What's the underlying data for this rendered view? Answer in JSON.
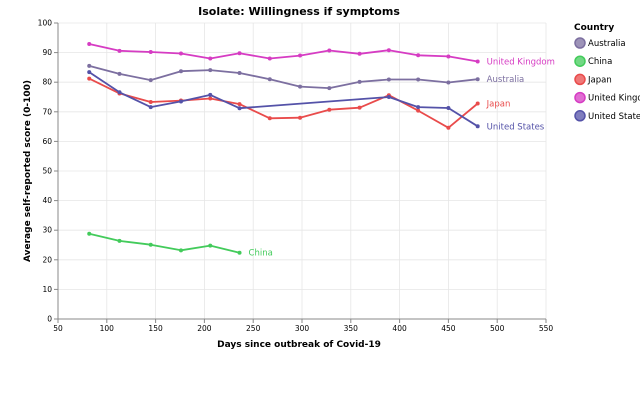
{
  "chart_data": {
    "type": "line",
    "title": "Isolate: Willingness if symptoms",
    "xlabel": "Days since outbreak of Covid-19",
    "ylabel": "Average self-reported score (0-100)",
    "xlim": [
      50,
      550
    ],
    "ylim": [
      0,
      100
    ],
    "x_ticks": [
      50,
      100,
      150,
      200,
      250,
      300,
      350,
      400,
      450,
      500,
      550
    ],
    "y_ticks": [
      0,
      10,
      20,
      30,
      40,
      50,
      60,
      70,
      80,
      90,
      100
    ],
    "grid": true,
    "legend": {
      "title": "Country",
      "placement": "right",
      "entries": [
        "Australia",
        "China",
        "Japan",
        "United Kingdom",
        "United States"
      ]
    },
    "series": [
      {
        "name": "Australia",
        "color": "#7c6fa0",
        "x": [
          82,
          113,
          145,
          176,
          206,
          236,
          267,
          298,
          328,
          359,
          389,
          419,
          450,
          480
        ],
        "y": [
          85.5,
          82.8,
          80.7,
          83.7,
          84.1,
          83.1,
          81.0,
          78.5,
          78.0,
          80.1,
          80.9,
          80.9,
          79.9,
          81.0
        ]
      },
      {
        "name": "China",
        "color": "#43cb5b",
        "x": [
          82,
          113,
          145,
          176,
          206,
          236
        ],
        "y": [
          28.8,
          26.4,
          25.1,
          23.2,
          24.8,
          22.4
        ]
      },
      {
        "name": "Japan",
        "color": "#e94b4b",
        "x": [
          82,
          113,
          145,
          176,
          206,
          236,
          267,
          298,
          328,
          359,
          389,
          419,
          450,
          480
        ],
        "y": [
          81.2,
          76.2,
          73.3,
          73.8,
          74.5,
          72.6,
          67.8,
          68.0,
          70.7,
          71.4,
          75.6,
          70.4,
          64.6,
          72.8
        ]
      },
      {
        "name": "United Kingdom",
        "color": "#d63cc3",
        "x": [
          82,
          113,
          145,
          176,
          206,
          236,
          267,
          298,
          328,
          359,
          389,
          419,
          450,
          480
        ],
        "y": [
          92.9,
          90.6,
          90.2,
          89.7,
          88.0,
          89.8,
          88.0,
          89.0,
          90.7,
          89.6,
          90.8,
          89.1,
          88.7,
          87.0
        ]
      },
      {
        "name": "United States",
        "color": "#5452a8",
        "x": [
          82,
          113,
          145,
          176,
          206,
          236,
          389,
          419,
          450,
          480
        ],
        "y": [
          83.4,
          76.6,
          71.6,
          73.5,
          75.7,
          71.2,
          75.0,
          71.6,
          71.3,
          65.1
        ]
      }
    ]
  }
}
